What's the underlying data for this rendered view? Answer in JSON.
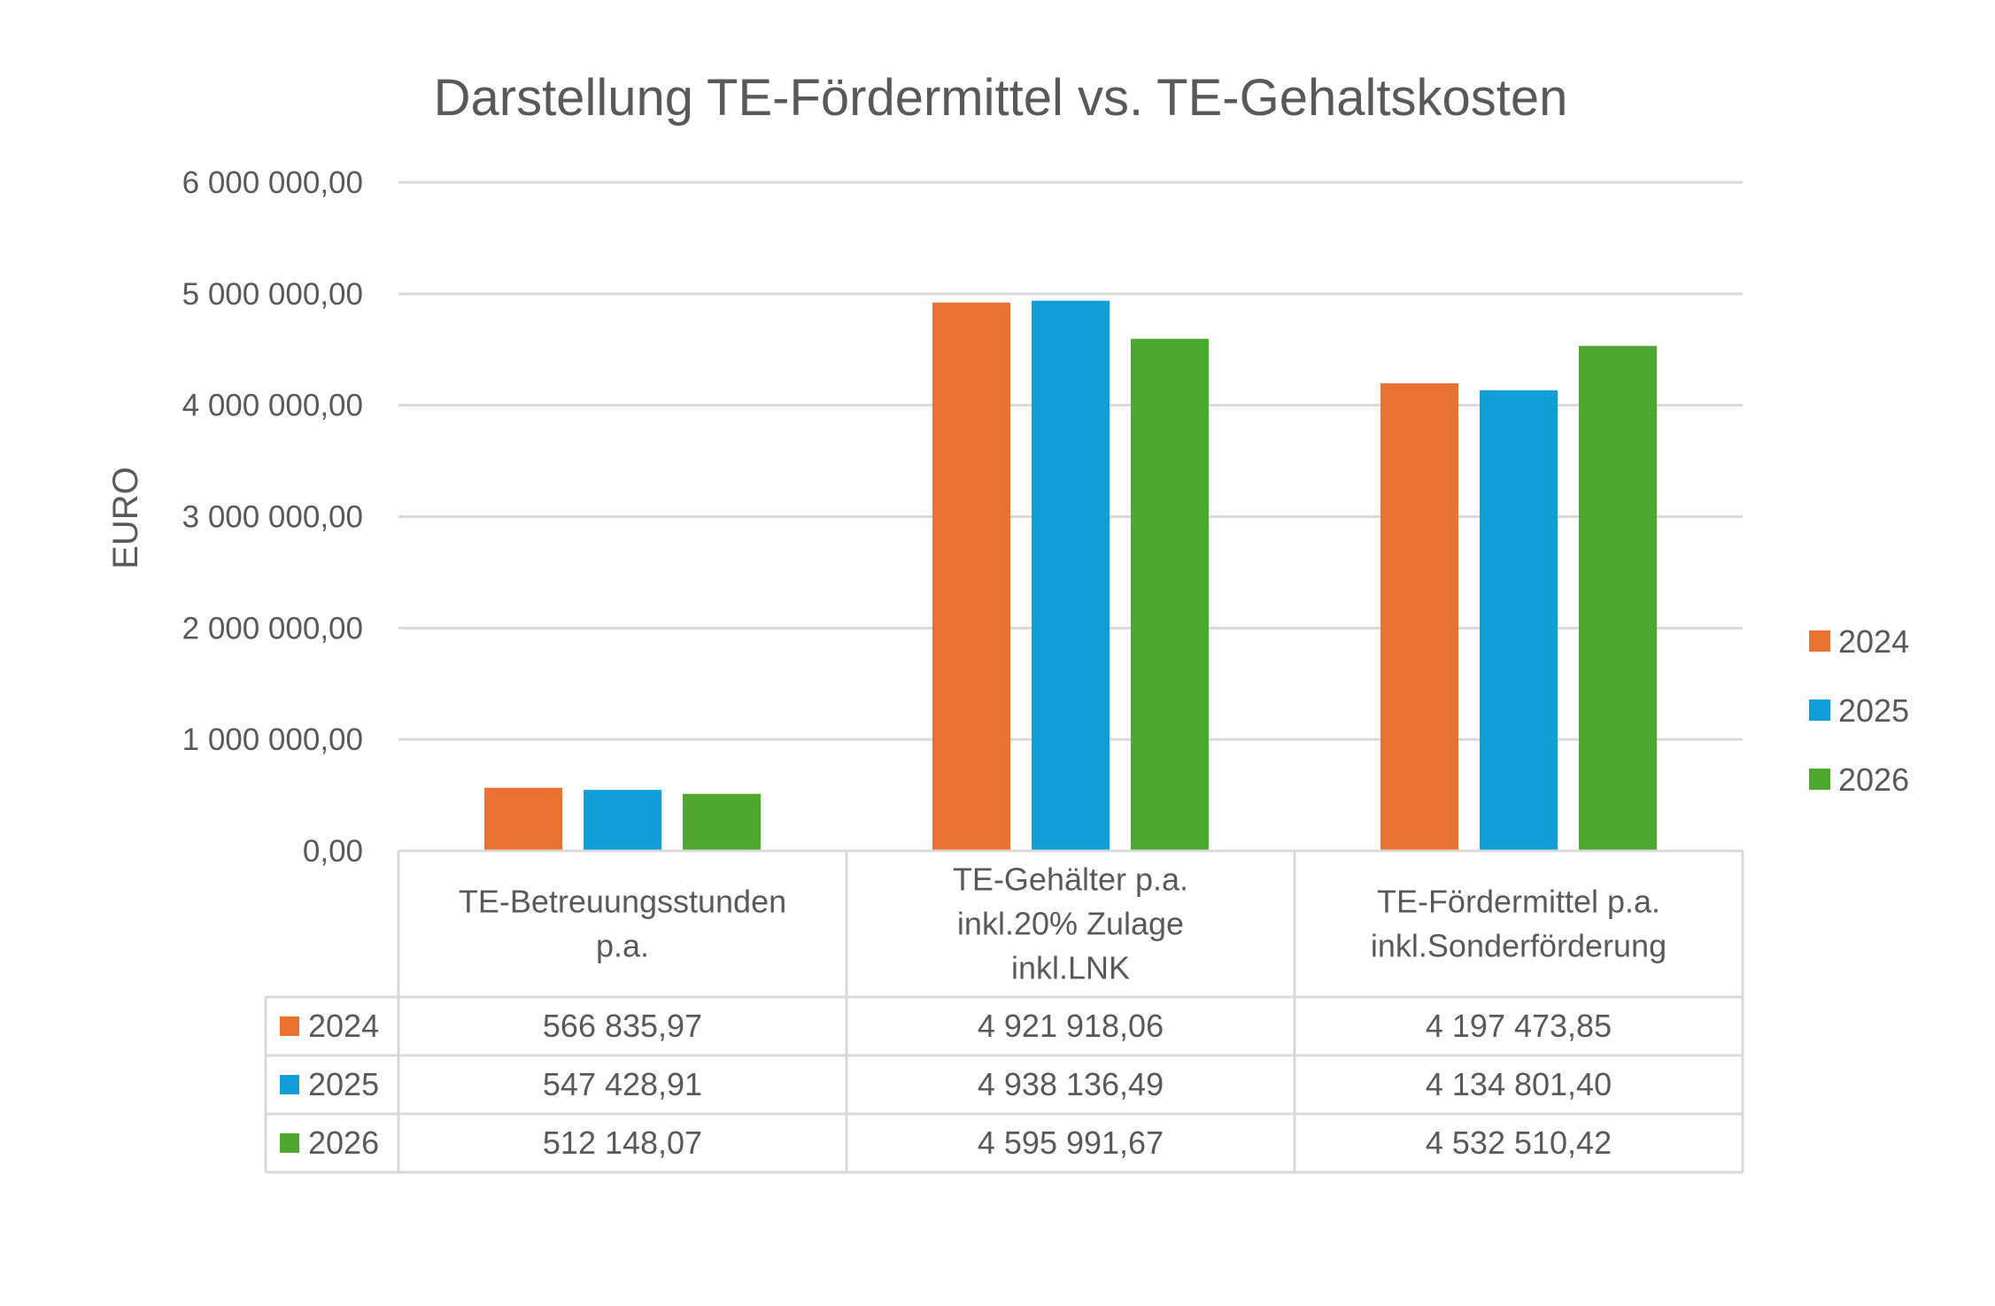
{
  "chart_data": {
    "type": "bar",
    "title": "Darstellung TE-Fördermittel vs. TE-Gehaltskosten",
    "xlabel": "",
    "ylabel": "EURO",
    "ylim": [
      0,
      6000000
    ],
    "yticks": [
      {
        "value": 0,
        "label": "0,00"
      },
      {
        "value": 1000000,
        "label": "1 000 000,00"
      },
      {
        "value": 2000000,
        "label": "2 000 000,00"
      },
      {
        "value": 3000000,
        "label": "3 000 000,00"
      },
      {
        "value": 4000000,
        "label": "4 000 000,00"
      },
      {
        "value": 5000000,
        "label": "5 000 000,00"
      },
      {
        "value": 6000000,
        "label": "6 000 000,00"
      }
    ],
    "grid": true,
    "legend": "right",
    "categories": [
      [
        "TE-Betreuungsstunden",
        "p.a."
      ],
      [
        "TE-Gehälter p.a.",
        "inkl.20% Zulage",
        "inkl.LNK"
      ],
      [
        "TE-Fördermittel p.a.",
        "inkl.Sonderförderung"
      ]
    ],
    "series": [
      {
        "name": "2024",
        "color": "#E97132",
        "values": [
          566835.97,
          4921918.06,
          4197473.85
        ],
        "labels": [
          "566 835,97",
          "4 921 918,06",
          "4 197 473,85"
        ]
      },
      {
        "name": "2025",
        "color": "#0F9ED5",
        "values": [
          547428.91,
          4938136.49,
          4134801.4
        ],
        "labels": [
          "547 428,91",
          "4 938 136,49",
          "4 134 801,40"
        ]
      },
      {
        "name": "2026",
        "color": "#4EA72E",
        "values": [
          512148.07,
          4595991.67,
          4532510.42
        ],
        "labels": [
          "512 148,07",
          "4 595 991,67",
          "4 532 510,42"
        ]
      }
    ]
  }
}
